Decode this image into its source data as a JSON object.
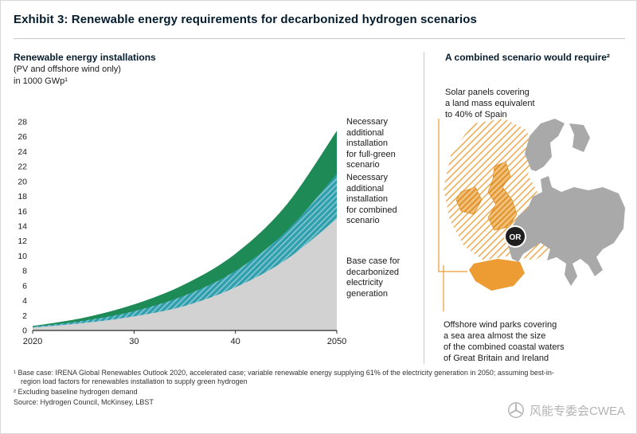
{
  "header": {
    "title": "Exhibit 3: Renewable energy requirements for decarbonized hydrogen scenarios"
  },
  "chart": {
    "title": "Renewable energy installations",
    "subtitle_line1": "(PV and offshore wind only)",
    "subtitle_line2": "in 1000 GWp¹",
    "annotations": {
      "full_green": "Necessary\nadditional\ninstallation\nfor full-green\nscenario",
      "combined": "Necessary\nadditional\ninstallation\nfor combined\nscenario",
      "base": "Base case for\ndecarbonized\nelectricity\ngeneration"
    }
  },
  "chart_data": {
    "type": "area",
    "title": "Renewable energy installations (PV and offshore wind only), in 1000 GWp",
    "note": "series values are cumulative totals (top edge of each band); bands stack: base case, + combined scenario addition, + full-green scenario addition",
    "x": [
      2020,
      2025,
      2030,
      2035,
      2040,
      2045,
      2050
    ],
    "series": [
      {
        "id": "base",
        "name": "Base case for decarbonized electricity generation",
        "color": "#d2d2d2",
        "values": [
          0.4,
          1.0,
          1.9,
          3.3,
          5.8,
          9.5,
          15.0
        ]
      },
      {
        "id": "combined",
        "name": "Necessary additional installation for combined scenario",
        "color": "#2f9fae",
        "hatch": true,
        "values": [
          0.5,
          1.3,
          2.6,
          4.7,
          8.0,
          13.3,
          21.0
        ]
      },
      {
        "id": "full_green",
        "name": "Necessary additional installation for full-green scenario",
        "color": "#1e8a55",
        "values": [
          0.6,
          1.7,
          3.5,
          6.2,
          10.3,
          16.8,
          26.8
        ]
      }
    ],
    "xticks": [
      "2020",
      "30",
      "40",
      "2050"
    ],
    "xtick_values": [
      2020,
      2030,
      2040,
      2050
    ],
    "ylim": [
      0,
      28
    ],
    "ytick_step": 2,
    "grid": false,
    "legend_position": "right-annotations"
  },
  "right": {
    "title": "A combined scenario would require²",
    "solar_text": "Solar panels covering\na land mass equivalent\nto 40% of Spain",
    "or_label": "OR",
    "wind_text": "Offshore wind parks covering\na sea area almost the size\nof the combined coastal waters\nof Great Britain and Ireland",
    "highlight_color": "#ED9B33",
    "map_color": "#a9a9a9"
  },
  "footnotes": {
    "note1_line1": "¹ Base case: IRENA Global Renewables Outlook 2020, accelerated case; variable renewable energy supplying 61% of the electricity generation in 2050; assuming best-in-",
    "note1_line2": "region load factors for renewables installation to supply green hydrogen",
    "note2": "² Excluding baseline hydrogen demand",
    "source": "Source: Hydrogen Council, McKinsey, LBST"
  },
  "watermark": {
    "text": "风能专委会CWEA"
  }
}
